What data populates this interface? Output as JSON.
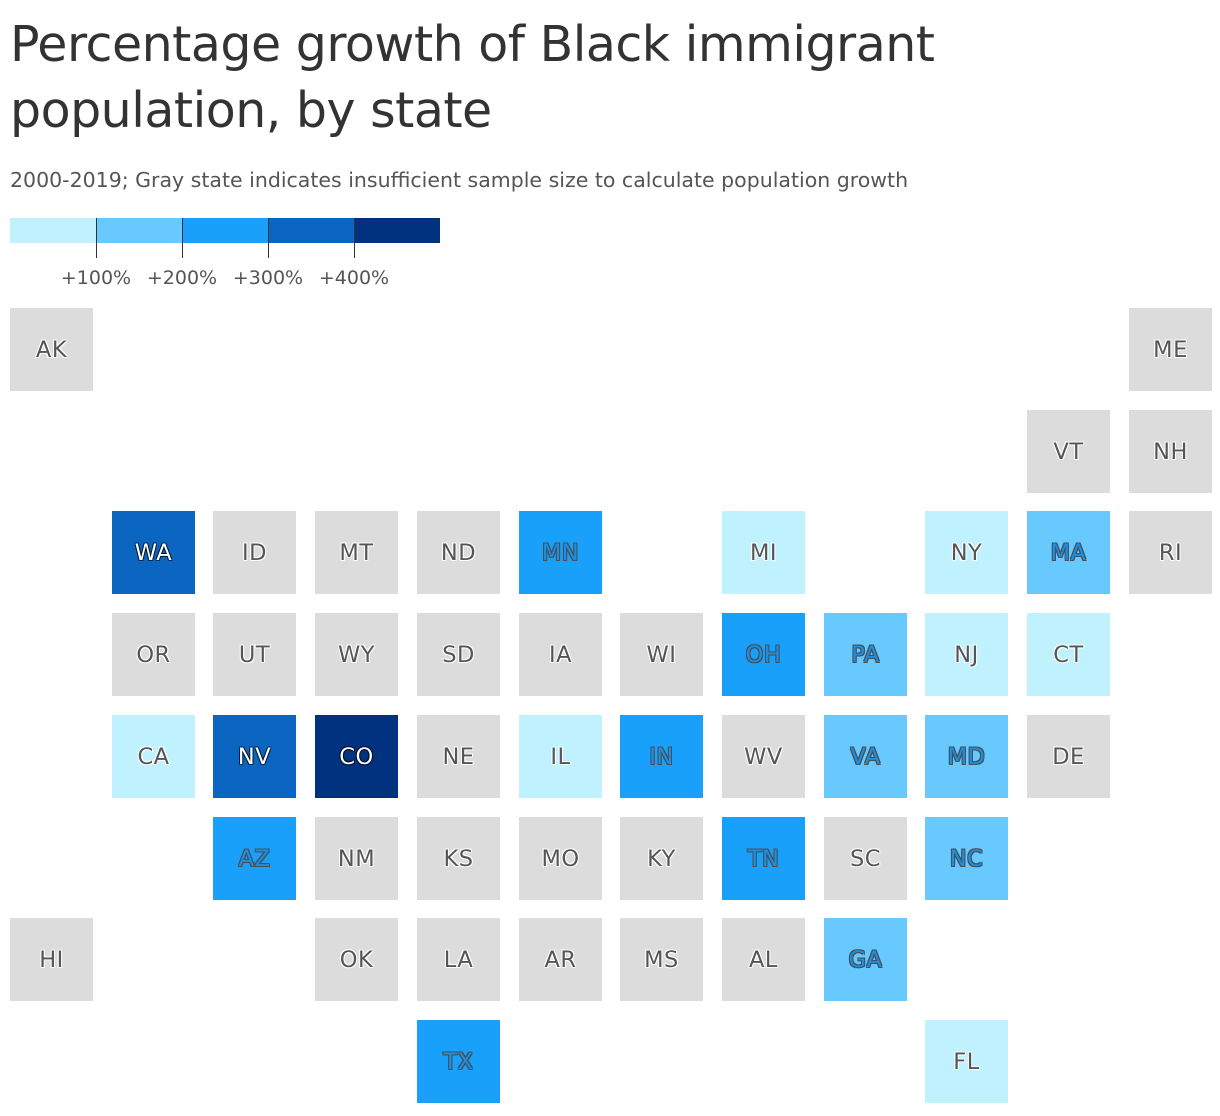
{
  "title": "Percentage growth of Black immigrant population, by state",
  "subtitle": "2000-2019; Gray state indicates insufficient sample size to calculate population growth",
  "legend": {
    "bins": [
      {
        "color": "#c0f1ff"
      },
      {
        "color": "#68c9ff"
      },
      {
        "color": "#18a0fb"
      },
      {
        "color": "#0b66c2"
      },
      {
        "color": "#00327f"
      }
    ],
    "ticks": [
      "+100%",
      "+200%",
      "+300%",
      "+400%"
    ]
  },
  "colors": {
    "insufficient_data": "#dcdcdc"
  },
  "states": [
    {
      "abbr": "AK",
      "col": 0,
      "row": 0,
      "bin": null
    },
    {
      "abbr": "ME",
      "col": 11,
      "row": 0,
      "bin": null
    },
    {
      "abbr": "VT",
      "col": 10,
      "row": 1,
      "bin": null
    },
    {
      "abbr": "NH",
      "col": 11,
      "row": 1,
      "bin": null
    },
    {
      "abbr": "WA",
      "col": 1,
      "row": 2,
      "bin": 3
    },
    {
      "abbr": "ID",
      "col": 2,
      "row": 2,
      "bin": null
    },
    {
      "abbr": "MT",
      "col": 3,
      "row": 2,
      "bin": null
    },
    {
      "abbr": "ND",
      "col": 4,
      "row": 2,
      "bin": null
    },
    {
      "abbr": "MN",
      "col": 5,
      "row": 2,
      "bin": 2
    },
    {
      "abbr": "MI",
      "col": 7,
      "row": 2,
      "bin": 0
    },
    {
      "abbr": "NY",
      "col": 9,
      "row": 2,
      "bin": 0
    },
    {
      "abbr": "MA",
      "col": 10,
      "row": 2,
      "bin": 1
    },
    {
      "abbr": "RI",
      "col": 11,
      "row": 2,
      "bin": null
    },
    {
      "abbr": "OR",
      "col": 1,
      "row": 3,
      "bin": null
    },
    {
      "abbr": "UT",
      "col": 2,
      "row": 3,
      "bin": null
    },
    {
      "abbr": "WY",
      "col": 3,
      "row": 3,
      "bin": null
    },
    {
      "abbr": "SD",
      "col": 4,
      "row": 3,
      "bin": null
    },
    {
      "abbr": "IA",
      "col": 5,
      "row": 3,
      "bin": null
    },
    {
      "abbr": "WI",
      "col": 6,
      "row": 3,
      "bin": null
    },
    {
      "abbr": "OH",
      "col": 7,
      "row": 3,
      "bin": 2
    },
    {
      "abbr": "PA",
      "col": 8,
      "row": 3,
      "bin": 1
    },
    {
      "abbr": "NJ",
      "col": 9,
      "row": 3,
      "bin": 0
    },
    {
      "abbr": "CT",
      "col": 10,
      "row": 3,
      "bin": 0
    },
    {
      "abbr": "CA",
      "col": 1,
      "row": 4,
      "bin": 0
    },
    {
      "abbr": "NV",
      "col": 2,
      "row": 4,
      "bin": 3
    },
    {
      "abbr": "CO",
      "col": 3,
      "row": 4,
      "bin": 4
    },
    {
      "abbr": "NE",
      "col": 4,
      "row": 4,
      "bin": null
    },
    {
      "abbr": "IL",
      "col": 5,
      "row": 4,
      "bin": 0
    },
    {
      "abbr": "IN",
      "col": 6,
      "row": 4,
      "bin": 2
    },
    {
      "abbr": "WV",
      "col": 7,
      "row": 4,
      "bin": null
    },
    {
      "abbr": "VA",
      "col": 8,
      "row": 4,
      "bin": 1
    },
    {
      "abbr": "MD",
      "col": 9,
      "row": 4,
      "bin": 1
    },
    {
      "abbr": "DE",
      "col": 10,
      "row": 4,
      "bin": null
    },
    {
      "abbr": "AZ",
      "col": 2,
      "row": 5,
      "bin": 2
    },
    {
      "abbr": "NM",
      "col": 3,
      "row": 5,
      "bin": null
    },
    {
      "abbr": "KS",
      "col": 4,
      "row": 5,
      "bin": null
    },
    {
      "abbr": "MO",
      "col": 5,
      "row": 5,
      "bin": null
    },
    {
      "abbr": "KY",
      "col": 6,
      "row": 5,
      "bin": null
    },
    {
      "abbr": "TN",
      "col": 7,
      "row": 5,
      "bin": 2
    },
    {
      "abbr": "SC",
      "col": 8,
      "row": 5,
      "bin": null
    },
    {
      "abbr": "NC",
      "col": 9,
      "row": 5,
      "bin": 1
    },
    {
      "abbr": "HI",
      "col": 0,
      "row": 6,
      "bin": null
    },
    {
      "abbr": "OK",
      "col": 3,
      "row": 6,
      "bin": null
    },
    {
      "abbr": "LA",
      "col": 4,
      "row": 6,
      "bin": null
    },
    {
      "abbr": "AR",
      "col": 5,
      "row": 6,
      "bin": null
    },
    {
      "abbr": "MS",
      "col": 6,
      "row": 6,
      "bin": null
    },
    {
      "abbr": "AL",
      "col": 7,
      "row": 6,
      "bin": null
    },
    {
      "abbr": "GA",
      "col": 8,
      "row": 6,
      "bin": 1
    },
    {
      "abbr": "TX",
      "col": 4,
      "row": 7,
      "bin": 2
    },
    {
      "abbr": "FL",
      "col": 9,
      "row": 7,
      "bin": 0
    }
  ]
}
